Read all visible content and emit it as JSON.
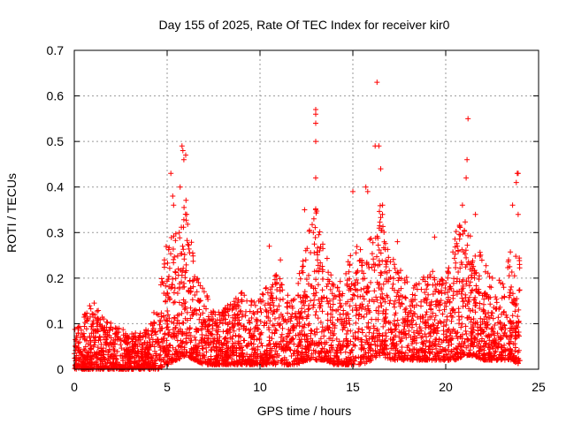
{
  "chart_data": {
    "type": "scatter",
    "title": "Day 155 of 2025, Rate Of TEC Index for receiver kir0",
    "xlabel": "GPS time / hours",
    "ylabel": "ROTI / TECUs",
    "xlim": [
      0,
      25
    ],
    "ylim": [
      0,
      0.7
    ],
    "xticks": [
      0,
      5,
      10,
      15,
      20,
      25
    ],
    "yticks": [
      0,
      0.1,
      0.2,
      0.3,
      0.4,
      0.5,
      0.6,
      0.7
    ],
    "xtick_labels": [
      "0",
      "5",
      "10",
      "15",
      "20",
      "25"
    ],
    "ytick_labels": [
      "0",
      "0.1",
      "0.2",
      "0.3",
      "0.4",
      "0.5",
      "0.6",
      "0.7"
    ],
    "grid": true,
    "marker": "+",
    "color": "#ff0000",
    "envelope": {
      "x": [
        0,
        0.5,
        1,
        1.5,
        2,
        2.5,
        3,
        3.5,
        4,
        4.5,
        5,
        5.5,
        6,
        6.5,
        7,
        7.5,
        8,
        8.5,
        9,
        9.5,
        10,
        10.5,
        11,
        11.5,
        12,
        12.5,
        13,
        13.5,
        14,
        14.5,
        15,
        15.5,
        16,
        16.5,
        17,
        17.5,
        18,
        18.5,
        19,
        19.5,
        20,
        20.5,
        21,
        21.5,
        22,
        22.5,
        23,
        23.5,
        24
      ],
      "upper": [
        0.09,
        0.12,
        0.15,
        0.12,
        0.1,
        0.09,
        0.08,
        0.08,
        0.09,
        0.15,
        0.29,
        0.3,
        0.38,
        0.22,
        0.17,
        0.14,
        0.13,
        0.15,
        0.17,
        0.15,
        0.16,
        0.2,
        0.22,
        0.17,
        0.19,
        0.28,
        0.36,
        0.26,
        0.2,
        0.19,
        0.29,
        0.26,
        0.3,
        0.37,
        0.26,
        0.22,
        0.2,
        0.19,
        0.24,
        0.2,
        0.2,
        0.3,
        0.34,
        0.28,
        0.25,
        0.2,
        0.2,
        0.26,
        0.25
      ],
      "lower": [
        0,
        0,
        0,
        0,
        0,
        0,
        0,
        0,
        0,
        0,
        0.01,
        0.02,
        0.03,
        0.02,
        0.01,
        0.01,
        0.01,
        0.01,
        0.01,
        0.01,
        0.01,
        0.01,
        0.01,
        0.01,
        0.01,
        0.02,
        0.02,
        0.02,
        0.01,
        0.01,
        0.01,
        0.01,
        0.02,
        0.03,
        0.02,
        0.02,
        0.02,
        0.02,
        0.02,
        0.02,
        0.02,
        0.02,
        0.03,
        0.03,
        0.02,
        0.02,
        0.02,
        0.02,
        0.01
      ]
    },
    "outliers": [
      {
        "x": 5.2,
        "y": 0.43
      },
      {
        "x": 5.3,
        "y": 0.38
      },
      {
        "x": 5.35,
        "y": 0.36
      },
      {
        "x": 5.8,
        "y": 0.49
      },
      {
        "x": 5.85,
        "y": 0.48
      },
      {
        "x": 5.9,
        "y": 0.46
      },
      {
        "x": 6.0,
        "y": 0.47
      },
      {
        "x": 5.7,
        "y": 0.4
      },
      {
        "x": 6.05,
        "y": 0.34
      },
      {
        "x": 10.5,
        "y": 0.27
      },
      {
        "x": 11.1,
        "y": 0.24
      },
      {
        "x": 12.4,
        "y": 0.35
      },
      {
        "x": 12.9,
        "y": 0.33
      },
      {
        "x": 13.0,
        "y": 0.57
      },
      {
        "x": 13.0,
        "y": 0.56
      },
      {
        "x": 13.0,
        "y": 0.54
      },
      {
        "x": 13.0,
        "y": 0.5
      },
      {
        "x": 13.0,
        "y": 0.42
      },
      {
        "x": 15.0,
        "y": 0.39
      },
      {
        "x": 15.7,
        "y": 0.4
      },
      {
        "x": 15.8,
        "y": 0.39
      },
      {
        "x": 16.3,
        "y": 0.63
      },
      {
        "x": 16.2,
        "y": 0.49
      },
      {
        "x": 16.4,
        "y": 0.49
      },
      {
        "x": 16.5,
        "y": 0.44
      },
      {
        "x": 16.6,
        "y": 0.36
      },
      {
        "x": 17.4,
        "y": 0.28
      },
      {
        "x": 19.4,
        "y": 0.29
      },
      {
        "x": 21.2,
        "y": 0.55
      },
      {
        "x": 21.15,
        "y": 0.46
      },
      {
        "x": 21.1,
        "y": 0.42
      },
      {
        "x": 20.9,
        "y": 0.36
      },
      {
        "x": 21.6,
        "y": 0.34
      },
      {
        "x": 23.9,
        "y": 0.43
      },
      {
        "x": 23.85,
        "y": 0.43
      },
      {
        "x": 23.8,
        "y": 0.41
      },
      {
        "x": 23.6,
        "y": 0.36
      },
      {
        "x": 23.9,
        "y": 0.34
      }
    ]
  }
}
